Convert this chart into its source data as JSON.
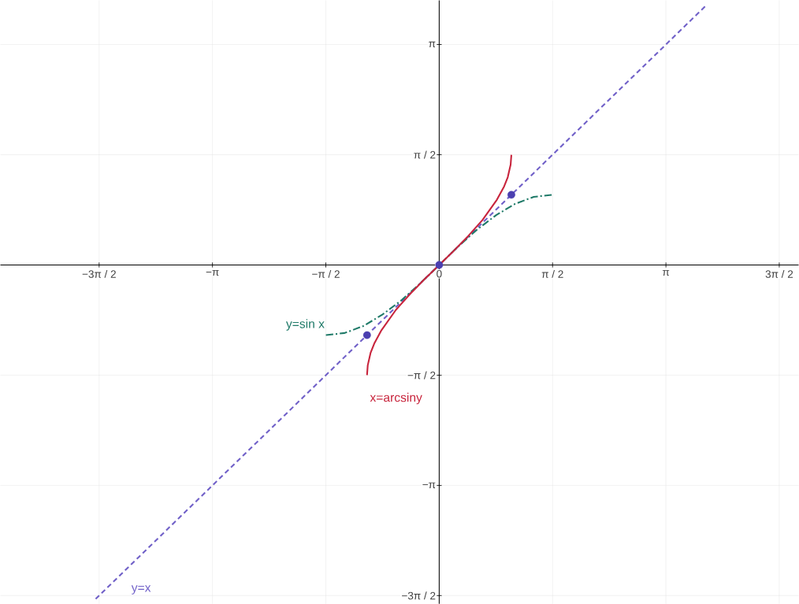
{
  "chart_data": {
    "type": "line",
    "xlim": [
      -6.08,
      4.98
    ],
    "ylim": [
      -4.83,
      3.77
    ],
    "xticks": [
      {
        "value": -4.712,
        "label": "−3π / 2"
      },
      {
        "value": -3.1416,
        "label": "−π"
      },
      {
        "value": -1.5708,
        "label": "−π / 2"
      },
      {
        "value": 0,
        "label": "0"
      },
      {
        "value": 1.5708,
        "label": "π / 2"
      },
      {
        "value": 3.1416,
        "label": "π"
      },
      {
        "value": 4.712,
        "label": "3π / 2"
      }
    ],
    "yticks": [
      {
        "value": -4.712,
        "label": "−3π / 2"
      },
      {
        "value": -3.1416,
        "label": "−π"
      },
      {
        "value": -1.5708,
        "label": "−π / 2"
      },
      {
        "value": 0,
        "label": null
      },
      {
        "value": 1.5708,
        "label": "π / 2"
      },
      {
        "value": 3.1416,
        "label": "π"
      }
    ],
    "grid": true,
    "series": [
      {
        "name": "y=x",
        "color": "#7060c8",
        "line_style": "dashed",
        "x": [
          -4.76,
          3.7
        ],
        "values": [
          -4.76,
          3.7
        ]
      },
      {
        "name": "y=sin x",
        "color": "#1f7a68",
        "line_style": "dashed",
        "x": [
          -1.57,
          -1.31,
          -1.05,
          -0.79,
          -0.52,
          -0.26,
          0,
          0.26,
          0.52,
          0.79,
          1.05,
          1.31,
          1.57
        ],
        "values": [
          -1,
          -0.97,
          -0.87,
          -0.71,
          -0.5,
          -0.26,
          0,
          0.26,
          0.5,
          0.71,
          0.87,
          0.97,
          1
        ]
      },
      {
        "name": "x=arcsiny",
        "color": "#c8243c",
        "line_style": "solid",
        "x": [
          -1,
          -0.99,
          -0.95,
          -0.9,
          -0.8,
          -0.6,
          -0.4,
          -0.2,
          0,
          0.2,
          0.4,
          0.6,
          0.8,
          0.9,
          0.95,
          0.99,
          1
        ],
        "values": [
          -1.57,
          -1.43,
          -1.25,
          -1.12,
          -0.93,
          -0.64,
          -0.41,
          -0.2,
          0,
          0.2,
          0.41,
          0.64,
          0.93,
          1.12,
          1.25,
          1.43,
          1.57
        ]
      },
      {
        "type": "scatter",
        "color": "#4b3fb0",
        "marker": "circle",
        "x": [
          -1,
          0,
          1
        ],
        "values": [
          -1,
          0,
          1
        ]
      }
    ]
  }
}
